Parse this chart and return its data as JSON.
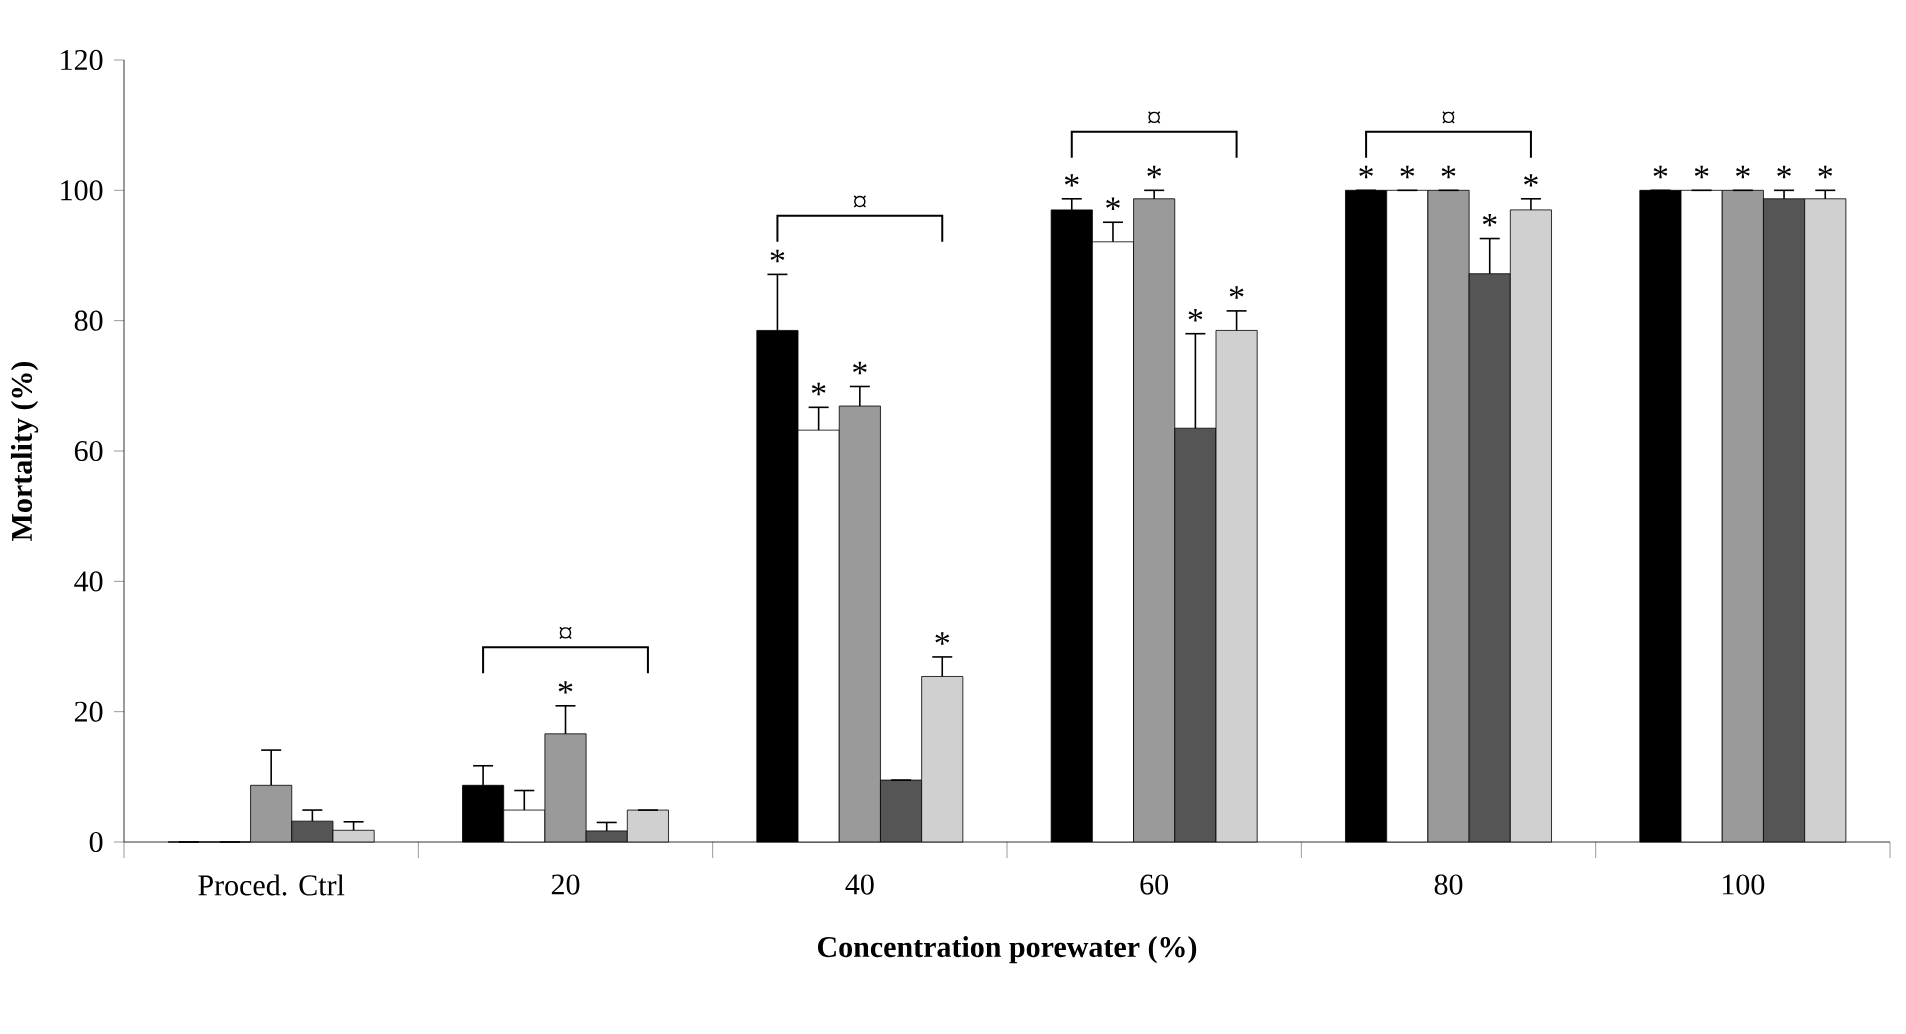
{
  "chart_data": {
    "type": "bar",
    "xlabel": "Concentration porewater (%)",
    "ylabel": "Mortality (%)",
    "categories": [
      "Proced. Ctrl",
      "20",
      "40",
      "60",
      "80",
      "100"
    ],
    "series": [
      {
        "color": "#000000",
        "values": [
          0,
          8.7,
          78.5,
          97,
          100,
          100
        ],
        "errors": [
          null,
          3,
          8.6,
          1.7,
          null,
          null
        ],
        "value_labels": [
          null,
          null,
          "*",
          "*",
          "*",
          "*"
        ]
      },
      {
        "color": "#ffffff",
        "values": [
          0,
          4.9,
          63.2,
          92.1,
          100,
          100
        ],
        "errors": [
          null,
          3,
          3.5,
          3,
          null,
          null
        ],
        "value_labels": [
          null,
          null,
          "*",
          "*",
          "*",
          "*"
        ]
      },
      {
        "color": "#9a9a9a",
        "values": [
          8.7,
          16.6,
          66.9,
          98.7,
          100,
          100
        ],
        "errors": [
          5.4,
          4.3,
          3,
          1.3,
          null,
          null
        ],
        "value_labels": [
          null,
          "*",
          "*",
          "*",
          "*",
          "*"
        ]
      },
      {
        "color": "#555555",
        "values": [
          3.2,
          1.7,
          9.5,
          63.5,
          87.2,
          98.7
        ],
        "errors": [
          1.7,
          1.3,
          null,
          14.5,
          5.4,
          1.3
        ],
        "value_labels": [
          null,
          null,
          null,
          "*",
          "*",
          "*"
        ]
      },
      {
        "color": "#d0d0d0",
        "values": [
          1.8,
          4.9,
          25.4,
          78.5,
          97,
          98.7
        ],
        "errors": [
          1.3,
          null,
          3,
          3,
          1.7,
          1.3
        ],
        "value_labels": [
          null,
          null,
          "*",
          "*",
          "*",
          "*"
        ]
      }
    ],
    "annotations": [
      "¤",
      "¤",
      "¤",
      "¤"
    ],
    "ylim": [
      0,
      120
    ],
    "yticks": [
      0,
      20,
      40,
      60,
      80,
      100,
      120
    ]
  }
}
